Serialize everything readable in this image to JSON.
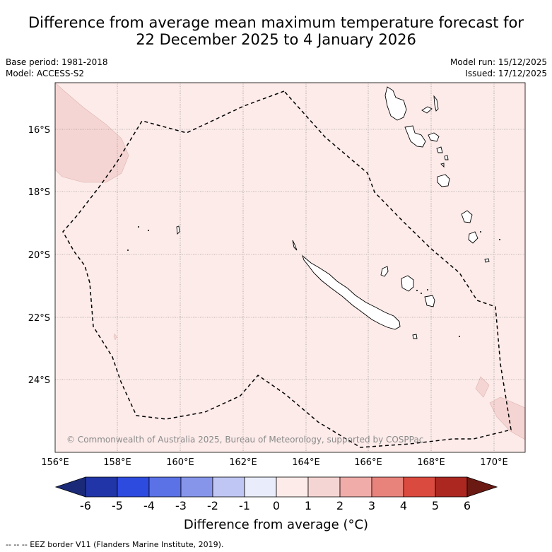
{
  "title_line1": "Difference from average mean maximum temperature forecast for",
  "title_line2": "22 December 2025 to 4 January 2026",
  "base_period": "Base period: 1981-2018",
  "model": "Model: ACCESS-S2",
  "model_run": "Model run: 15/12/2025",
  "issued": "Issued: 17/12/2025",
  "lat_labels": [
    "16°S",
    "18°S",
    "20°S",
    "22°S",
    "24°S"
  ],
  "lon_labels": [
    "156°E",
    "158°E",
    "160°E",
    "162°E",
    "164°E",
    "166°E",
    "168°E",
    "170°E"
  ],
  "copyright": "© Commonwealth of Australia 2025, Bureau of Meteorology, supported by COSPPac",
  "colorbar": {
    "ticks": [
      "-6",
      "-5",
      "-4",
      "-3",
      "-2",
      "-1",
      "0",
      "1",
      "2",
      "3",
      "4",
      "5",
      "6"
    ],
    "colors": [
      "#2135a8",
      "#2e4bdf",
      "#5a72e6",
      "#8695ea",
      "#c0c6f3",
      "#e9ecfa",
      "#fcebe9",
      "#f5d5d3",
      "#efaca8",
      "#e8837c",
      "#db4a3e",
      "#ab2720"
    ],
    "under_color": "#1a2a78",
    "over_color": "#6a1a12",
    "title": "Difference from average (°C)"
  },
  "colors": {
    "map_bg": "#fcebe9",
    "anomaly_patch": "#f5d5d3"
  },
  "legend": "-- -- -- EEZ border V11 (Flanders Marine Institute, 2019)."
}
